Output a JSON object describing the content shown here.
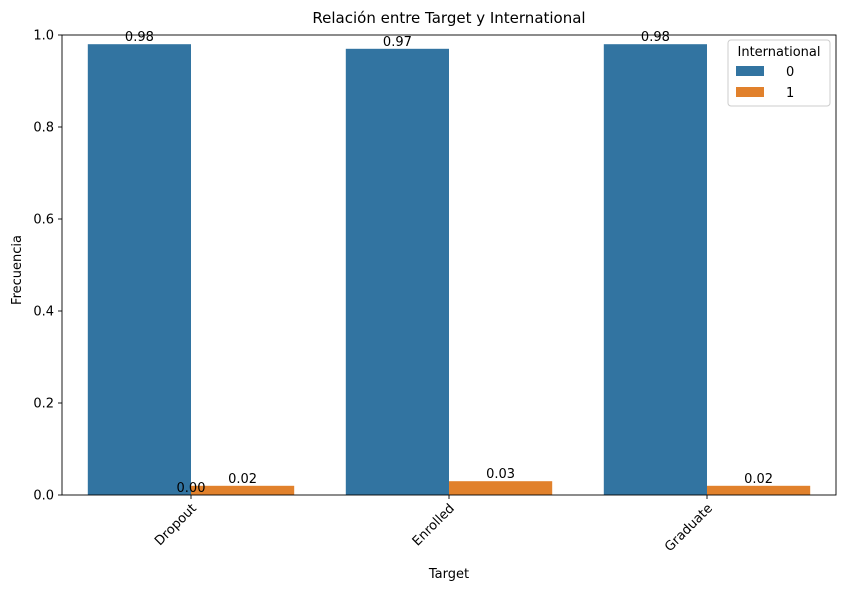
{
  "chart_data": {
    "type": "bar",
    "title": "Relación entre Target y International",
    "xlabel": "Target",
    "ylabel": "Frecuencia",
    "categories": [
      "Dropout",
      "Enrolled",
      "Graduate"
    ],
    "series": [
      {
        "name": "0",
        "values": [
          0.98,
          0.97,
          0.98
        ],
        "labels": [
          "0.98",
          "0.97",
          "0.98"
        ],
        "color": "#3274a1"
      },
      {
        "name": "1",
        "values": [
          0.02,
          0.03,
          0.02
        ],
        "labels": [
          "0.02",
          "0.03",
          "0.02"
        ],
        "color": "#e1812c"
      }
    ],
    "extra_labels": [
      "0.00"
    ],
    "ylim": [
      0,
      1.0
    ],
    "yticks": [
      0.0,
      0.2,
      0.4,
      0.6,
      0.8,
      1.0
    ],
    "ytick_labels": [
      "0.0",
      "0.2",
      "0.4",
      "0.6",
      "0.8",
      "1.0"
    ],
    "legend": {
      "title": "International",
      "placement": "top-right"
    },
    "grid": false
  }
}
